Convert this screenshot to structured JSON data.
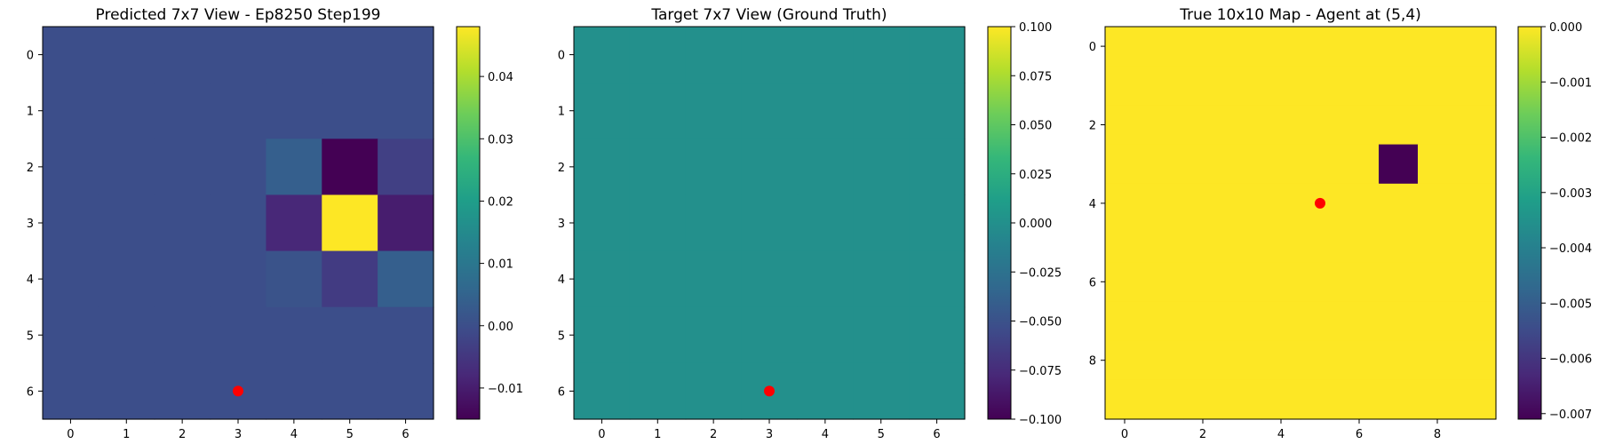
{
  "chart_data": [
    {
      "type": "heatmap",
      "title": "Predicted 7x7 View - Ep8250 Step199",
      "n_rows": 7,
      "n_cols": 7,
      "x_ticks": [
        0,
        1,
        2,
        3,
        4,
        5,
        6
      ],
      "y_ticks": [
        0,
        1,
        2,
        3,
        4,
        5,
        6
      ],
      "values": [
        [
          0.0,
          0.0,
          0.0,
          0.0,
          0.0,
          0.0,
          0.0
        ],
        [
          0.0,
          0.0,
          0.0,
          0.0,
          0.0,
          0.0,
          0.0
        ],
        [
          0.0,
          0.0,
          0.0,
          0.0,
          0.004,
          -0.015,
          -0.003
        ],
        [
          0.0,
          0.0,
          0.0,
          0.0,
          -0.008,
          0.048,
          -0.01
        ],
        [
          0.0,
          0.0,
          0.0,
          0.0,
          0.001,
          -0.004,
          0.004
        ],
        [
          0.0,
          0.0,
          0.0,
          0.0,
          0.0,
          0.0,
          0.0
        ],
        [
          0.0,
          0.0,
          0.0,
          0.0,
          0.0,
          0.0,
          0.0
        ]
      ],
      "vmin": -0.015,
      "vmax": 0.048,
      "colorbar_ticks": [
        0.04,
        0.03,
        0.02,
        0.01,
        0.0,
        -0.01
      ],
      "colorbar_labels": [
        "0.04",
        "0.03",
        "0.02",
        "0.01",
        "0.00",
        "−0.01"
      ],
      "marker": {
        "x": 3,
        "y": 6,
        "color": "#ff0000"
      }
    },
    {
      "type": "heatmap",
      "title": "Target 7x7 View (Ground Truth)",
      "n_rows": 7,
      "n_cols": 7,
      "x_ticks": [
        0,
        1,
        2,
        3,
        4,
        5,
        6
      ],
      "y_ticks": [
        0,
        1,
        2,
        3,
        4,
        5,
        6
      ],
      "values": [
        [
          0,
          0,
          0,
          0,
          0,
          0,
          0
        ],
        [
          0,
          0,
          0,
          0,
          0,
          0,
          0
        ],
        [
          0,
          0,
          0,
          0,
          0,
          0,
          0
        ],
        [
          0,
          0,
          0,
          0,
          0,
          0,
          0
        ],
        [
          0,
          0,
          0,
          0,
          0,
          0,
          0
        ],
        [
          0,
          0,
          0,
          0,
          0,
          0,
          0
        ],
        [
          0,
          0,
          0,
          0,
          0,
          0,
          0
        ]
      ],
      "vmin": -0.1,
      "vmax": 0.1,
      "colorbar_ticks": [
        0.1,
        0.075,
        0.05,
        0.025,
        0.0,
        -0.025,
        -0.05,
        -0.075,
        -0.1
      ],
      "colorbar_labels": [
        "0.100",
        "0.075",
        "0.050",
        "0.025",
        "0.000",
        "−0.025",
        "−0.050",
        "−0.075",
        "−0.100"
      ],
      "marker": {
        "x": 3,
        "y": 6,
        "color": "#ff0000"
      }
    },
    {
      "type": "heatmap",
      "title": "True 10x10 Map - Agent at (5,4)",
      "n_rows": 10,
      "n_cols": 10,
      "x_ticks": [
        0,
        2,
        4,
        6,
        8
      ],
      "y_ticks": [
        0,
        2,
        4,
        6,
        8
      ],
      "values": [
        [
          0,
          0,
          0,
          0,
          0,
          0,
          0,
          0,
          0,
          0
        ],
        [
          0,
          0,
          0,
          0,
          0,
          0,
          0,
          0,
          0,
          0
        ],
        [
          0,
          0,
          0,
          0,
          0,
          0,
          0,
          0,
          0,
          0
        ],
        [
          0,
          0,
          0,
          0,
          0,
          0,
          0,
          -0.0071,
          0,
          0
        ],
        [
          0,
          0,
          0,
          0,
          0,
          0,
          0,
          0,
          0,
          0
        ],
        [
          0,
          0,
          0,
          0,
          0,
          0,
          0,
          0,
          0,
          0
        ],
        [
          0,
          0,
          0,
          0,
          0,
          0,
          0,
          0,
          0,
          0
        ],
        [
          0,
          0,
          0,
          0,
          0,
          0,
          0,
          0,
          0,
          0
        ],
        [
          0,
          0,
          0,
          0,
          0,
          0,
          0,
          0,
          0,
          0
        ],
        [
          0,
          0,
          0,
          0,
          0,
          0,
          0,
          0,
          0,
          0
        ]
      ],
      "vmin": -0.0071,
      "vmax": 0.0,
      "colorbar_ticks": [
        0.0,
        -0.001,
        -0.002,
        -0.003,
        -0.004,
        -0.005,
        -0.006,
        -0.007
      ],
      "colorbar_labels": [
        "0.000",
        "−0.001",
        "−0.002",
        "−0.003",
        "−0.004",
        "−0.005",
        "−0.006",
        "−0.007"
      ],
      "marker": {
        "x": 5,
        "y": 4,
        "color": "#ff0000"
      }
    }
  ]
}
